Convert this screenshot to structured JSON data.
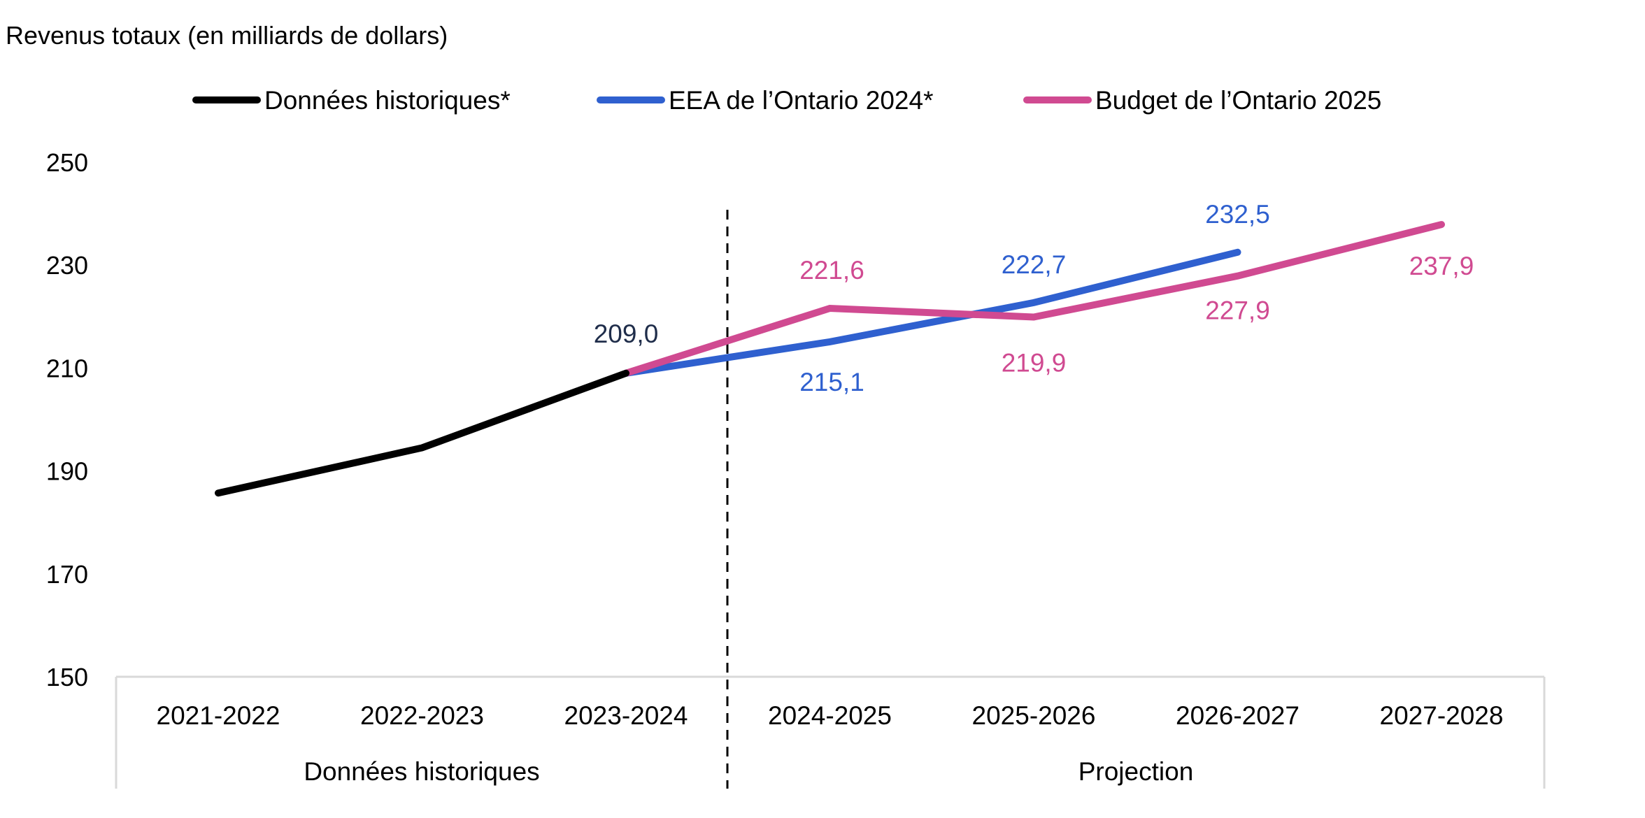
{
  "chart_data": {
    "type": "line",
    "title": "Revenus totaux (en milliards de dollars)",
    "xlabel": "",
    "ylabel": "",
    "ylim": [
      150,
      250
    ],
    "yticks": [
      "150",
      "170",
      "190",
      "210",
      "230",
      "250"
    ],
    "ytick_values": [
      150,
      170,
      190,
      210,
      230,
      250
    ],
    "grid": false,
    "legend_position": "top-center",
    "categories": [
      "2021-2022",
      "2022-2023",
      "2023-2024",
      "2024-2025",
      "2025-2026",
      "2026-2027",
      "2027-2028"
    ],
    "category_groups": [
      {
        "label": "Données historiques",
        "span": [
          "2021-2022",
          "2023-2024"
        ]
      },
      {
        "label": "Projection",
        "span": [
          "2024-2025",
          "2027-2028"
        ]
      }
    ],
    "divider_after": "2023-2024",
    "series": [
      {
        "name": "Données historiques*",
        "color": "#000000",
        "values": [
          185.7,
          194.5,
          209.0,
          null,
          null,
          null,
          null
        ],
        "labels": [
          null,
          null,
          "209,0",
          null,
          null,
          null,
          null
        ],
        "label_color": "#1F2D4A"
      },
      {
        "name": "EEA de l’Ontario 2024*",
        "color": "#2F60CF",
        "values": [
          null,
          null,
          209.0,
          215.1,
          222.7,
          232.5,
          null
        ],
        "labels": [
          null,
          null,
          null,
          "215,1",
          "222,7",
          "232,5",
          null
        ],
        "label_color": "#2F60CF"
      },
      {
        "name": "Budget de l’Ontario 2025",
        "color": "#D04A91",
        "values": [
          null,
          null,
          209.0,
          221.6,
          219.9,
          227.9,
          237.9
        ],
        "labels": [
          null,
          null,
          null,
          "221,6",
          "219,9",
          "227,9",
          "237,9"
        ],
        "label_color": "#D04A91"
      }
    ]
  }
}
